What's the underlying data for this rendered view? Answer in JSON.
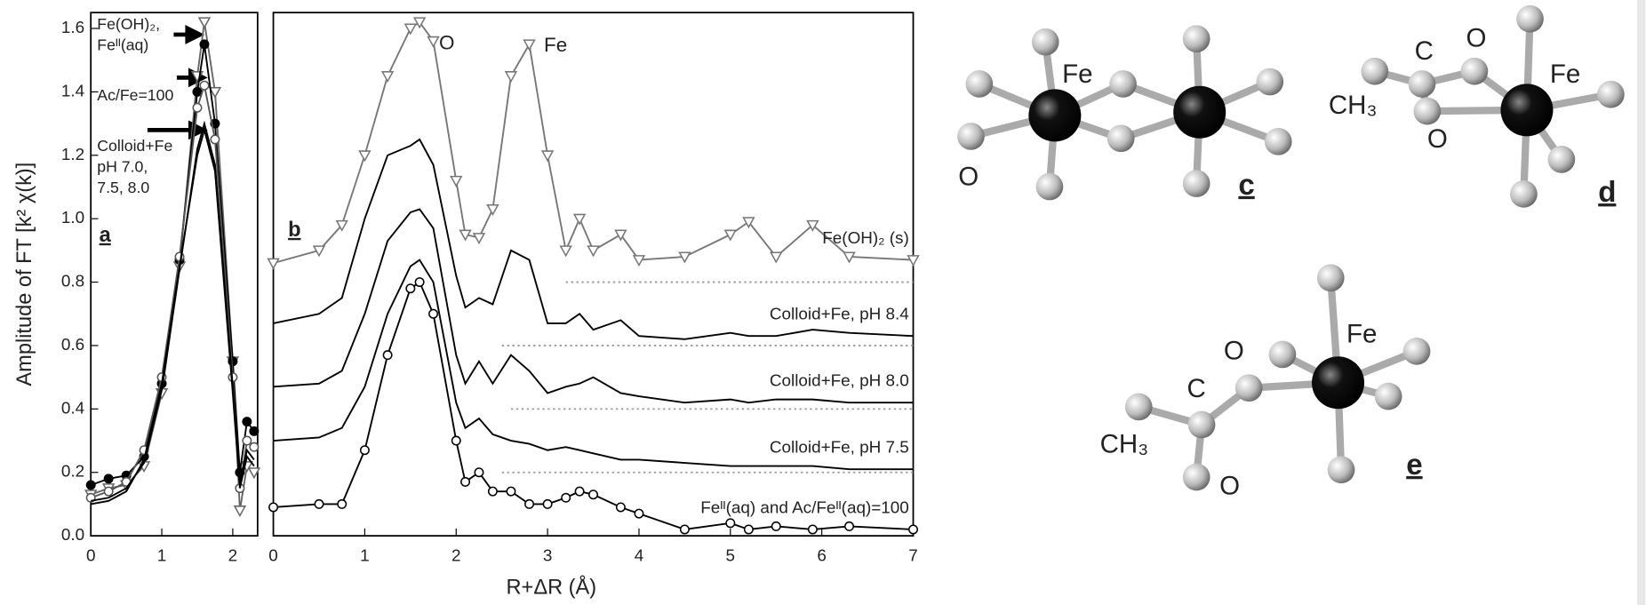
{
  "chart_data": [
    {
      "type": "line",
      "panel_label": "a",
      "ylabel": "Amplitude of FT [k² χ(k)]",
      "annotations": [
        "Fe(OH)₂,",
        "Feᴵᴵ(aq)",
        "Ac/Fe=100",
        "Colloid+Fe",
        "pH 7.0,",
        "7.5, 8.0"
      ],
      "x": [
        0,
        0.25,
        0.5,
        0.75,
        1,
        1.25,
        1.5,
        1.6,
        1.75,
        2,
        2.1,
        2.2,
        2.3
      ],
      "xlim": [
        0,
        2.35
      ],
      "xticks": [
        0,
        1,
        2
      ],
      "ylim": [
        0,
        1.65
      ],
      "yticks": [
        {
          "value": 0,
          "label": "0.0"
        },
        {
          "value": 0.2,
          "label": "0.2"
        },
        {
          "value": 0.4,
          "label": "0.4"
        },
        {
          "value": 0.6,
          "label": "0.6"
        },
        {
          "value": 0.8,
          "label": "0.8"
        },
        {
          "value": 1.0,
          "label": "1.0"
        },
        {
          "value": 1.2,
          "label": "1.2"
        },
        {
          "value": 1.4,
          "label": "1.4"
        },
        {
          "value": 1.6,
          "label": "1.6"
        }
      ],
      "series": [
        {
          "color": "#666666",
          "marker": "triangle-open",
          "values": [
            0.13,
            0.15,
            0.16,
            0.22,
            0.45,
            0.85,
            1.45,
            1.62,
            1.4,
            0.55,
            0.08,
            0.22,
            0.2
          ]
        },
        {
          "color": "#000000",
          "marker": "circle-filled",
          "values": [
            0.16,
            0.18,
            0.19,
            0.25,
            0.48,
            0.87,
            1.4,
            1.55,
            1.3,
            0.55,
            0.2,
            0.36,
            0.33
          ]
        },
        {
          "color": "#555555",
          "marker": "circle-open",
          "values": [
            0.12,
            0.14,
            0.17,
            0.27,
            0.5,
            0.88,
            1.35,
            1.42,
            1.25,
            0.5,
            0.15,
            0.3,
            0.28
          ]
        },
        {
          "color": "#000000",
          "values": [
            0.1,
            0.11,
            0.14,
            0.24,
            0.48,
            0.85,
            1.2,
            1.28,
            1.15,
            0.45,
            0.15,
            0.25,
            0.22
          ]
        },
        {
          "color": "#000000",
          "values": [
            0.11,
            0.12,
            0.15,
            0.23,
            0.46,
            0.84,
            1.22,
            1.3,
            1.17,
            0.47,
            0.17,
            0.27,
            0.24
          ]
        }
      ]
    },
    {
      "type": "line",
      "panel_label": "b",
      "xlabel": "R+ΔR (Å)",
      "annotations": [
        "O",
        "Fe"
      ],
      "x": [
        0,
        0.5,
        0.75,
        1,
        1.25,
        1.5,
        1.6,
        1.75,
        2,
        2.1,
        2.25,
        2.4,
        2.6,
        2.8,
        3,
        3.2,
        3.35,
        3.5,
        3.8,
        4,
        4.5,
        5,
        5.2,
        5.5,
        5.9,
        6.3,
        7
      ],
      "xlim": [
        0,
        7
      ],
      "xticks": [
        0,
        1,
        2,
        3,
        4,
        5,
        6,
        7
      ],
      "ylim": [
        0,
        1.65
      ],
      "baselines": [
        {
          "y": 0.8,
          "x": [
            3.2,
            7
          ]
        },
        {
          "y": 0.6,
          "x": [
            2.5,
            7
          ]
        },
        {
          "y": 0.4,
          "x": [
            2.6,
            7
          ]
        },
        {
          "y": 0.2,
          "x": [
            2.5,
            7
          ]
        }
      ],
      "series": [
        {
          "name": "Fe(OH)₂ (s)",
          "color": "#777777",
          "marker": "triangle-open",
          "values": [
            0.86,
            0.9,
            0.98,
            1.2,
            1.45,
            1.6,
            1.62,
            1.56,
            1.12,
            0.95,
            0.94,
            1.03,
            1.45,
            1.55,
            1.2,
            0.9,
            1.0,
            0.9,
            0.95,
            0.87,
            0.88,
            0.95,
            0.99,
            0.88,
            0.98,
            0.88,
            0.87
          ]
        },
        {
          "name": "Colloid+Fe, pH 8.4",
          "color": "#000000",
          "values": [
            0.67,
            0.7,
            0.75,
            1.0,
            1.2,
            1.23,
            1.25,
            1.17,
            0.82,
            0.72,
            0.75,
            0.73,
            0.9,
            0.87,
            0.67,
            0.67,
            0.7,
            0.65,
            0.68,
            0.63,
            0.62,
            0.64,
            0.63,
            0.63,
            0.65,
            0.64,
            0.63
          ]
        },
        {
          "name": "Colloid+Fe, pH 8.0",
          "color": "#000000",
          "values": [
            0.47,
            0.48,
            0.52,
            0.7,
            0.93,
            1.02,
            1.03,
            0.97,
            0.57,
            0.48,
            0.55,
            0.48,
            0.57,
            0.52,
            0.45,
            0.47,
            0.48,
            0.5,
            0.45,
            0.44,
            0.42,
            0.43,
            0.42,
            0.43,
            0.43,
            0.42,
            0.42
          ]
        },
        {
          "name": "Colloid+Fe, pH 7.5",
          "color": "#000000",
          "values": [
            0.3,
            0.31,
            0.34,
            0.47,
            0.7,
            0.85,
            0.87,
            0.8,
            0.42,
            0.34,
            0.37,
            0.32,
            0.3,
            0.29,
            0.27,
            0.28,
            0.27,
            0.26,
            0.24,
            0.24,
            0.23,
            0.22,
            0.22,
            0.22,
            0.22,
            0.21,
            0.21
          ]
        },
        {
          "name": "Feᴵᴵ(aq) and Ac/Feᴵᴵ(aq)=100",
          "color": "#000000",
          "marker": "circle-open",
          "values": [
            0.09,
            0.1,
            0.1,
            0.27,
            0.57,
            0.78,
            0.8,
            0.7,
            0.3,
            0.17,
            0.2,
            0.14,
            0.14,
            0.1,
            0.1,
            0.12,
            0.14,
            0.13,
            0.09,
            0.07,
            0.02,
            0.04,
            0.02,
            0.03,
            0.02,
            0.03,
            0.02
          ]
        }
      ]
    }
  ],
  "structures": [
    {
      "panel": "c",
      "atom_labels": [
        "Fe",
        "O"
      ]
    },
    {
      "panel": "d",
      "atom_labels": [
        "C",
        "O",
        "Fe",
        "CH₃",
        "O"
      ]
    },
    {
      "panel": "e",
      "atom_labels": [
        "O",
        "Fe",
        "C",
        "CH₃",
        "O"
      ]
    }
  ]
}
